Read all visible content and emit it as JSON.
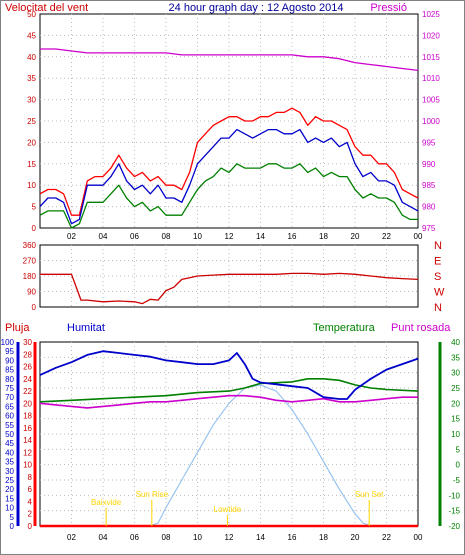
{
  "header": {
    "left": "Velocitat del vent",
    "center": "24 hour graph day : 12 Agosto 2014",
    "right": "Pressió"
  },
  "colors": {
    "wind_gust": "#ff0000",
    "wind_avg": "#0000cc",
    "wind_min": "#008000",
    "pressure": "#cc00cc",
    "direction": "#cc0000",
    "humidity": "#0000cc",
    "temperature": "#008000",
    "dew_point": "#cc00cc",
    "solar": "#99c4f0",
    "rain": "#ff0000",
    "events": "#ffd400",
    "left_axis": "#cc0000",
    "hum_axis": "#0000cc",
    "right_axis": "#cc00cc",
    "temp_axis": "#008000"
  },
  "x_ticks": [
    "02",
    "04",
    "06",
    "08",
    "10",
    "12",
    "14",
    "16",
    "18",
    "20",
    "22",
    "00"
  ],
  "chart_data": [
    {
      "type": "line",
      "title": "24 hour graph day : 12 Agosto 2014",
      "xlabel": "",
      "xlim": [
        0,
        24
      ],
      "y_left": {
        "label": "Velocitat del vent",
        "ylim": [
          0,
          50
        ],
        "ticks": [
          "0",
          "5",
          "10",
          "15",
          "20",
          "25",
          "30",
          "35",
          "40",
          "45",
          "50"
        ]
      },
      "y_right": {
        "label": "Pressió",
        "ylim": [
          970,
          1025
        ],
        "ticks": [
          "975",
          "980",
          "985",
          "990",
          "995",
          "1000",
          "1005",
          "1010",
          "1015",
          "1020",
          "1025"
        ]
      },
      "series": [
        {
          "name": "Velocitat del vent",
          "axis": "left",
          "x": [
            0,
            0.5,
            1,
            1.5,
            2,
            2.5,
            3,
            3.5,
            4,
            4.5,
            5,
            5.5,
            6,
            6.5,
            7,
            7.5,
            8,
            8.5,
            9,
            9.5,
            10,
            10.5,
            11,
            11.5,
            12,
            12.5,
            13,
            13.5,
            14,
            14.5,
            15,
            15.5,
            16,
            16.5,
            17,
            17.5,
            18,
            18.5,
            19,
            19.5,
            20,
            20.5,
            21,
            21.5,
            22,
            22.5,
            23,
            23.5,
            24
          ],
          "y": [
            5,
            7,
            7,
            6,
            1,
            2,
            10,
            10,
            10,
            12,
            15,
            11,
            9,
            10,
            8,
            10,
            7,
            7,
            6,
            10,
            15,
            17,
            19,
            21,
            21,
            23,
            22,
            21,
            22,
            23,
            23,
            22,
            22,
            23,
            20,
            21,
            20,
            21,
            19,
            20,
            15,
            12,
            13,
            11,
            11,
            10,
            6,
            5,
            4
          ]
        },
        {
          "name": "",
          "axis": "left",
          "x": [
            0,
            0.5,
            1,
            1.5,
            2,
            2.5,
            3,
            3.5,
            4,
            4.5,
            5,
            5.5,
            6,
            6.5,
            7,
            7.5,
            8,
            8.5,
            9,
            9.5,
            10,
            10.5,
            11,
            11.5,
            12,
            12.5,
            13,
            13.5,
            14,
            14.5,
            15,
            15.5,
            16,
            16.5,
            17,
            17.5,
            18,
            18.5,
            19,
            19.5,
            20,
            20.5,
            21,
            21.5,
            22,
            22.5,
            23,
            23.5,
            24
          ],
          "y": [
            8,
            9,
            9,
            8,
            3,
            3,
            11,
            12,
            12,
            14,
            17,
            14,
            12,
            13,
            11,
            12,
            10,
            10,
            9,
            13,
            20,
            22,
            24,
            25,
            26,
            26,
            25,
            25,
            26,
            26,
            27,
            27,
            28,
            27,
            24,
            26,
            25,
            25,
            24,
            23,
            19,
            17,
            17,
            15,
            15,
            13,
            9,
            8,
            7
          ]
        },
        {
          "name": "",
          "axis": "left",
          "x": [
            0,
            0.5,
            1,
            1.5,
            2,
            2.5,
            3,
            3.5,
            4,
            4.5,
            5,
            5.5,
            6,
            6.5,
            7,
            7.5,
            8,
            8.5,
            9,
            9.5,
            10,
            10.5,
            11,
            11.5,
            12,
            12.5,
            13,
            13.5,
            14,
            14.5,
            15,
            15.5,
            16,
            16.5,
            17,
            17.5,
            18,
            18.5,
            19,
            19.5,
            20,
            20.5,
            21,
            21.5,
            22,
            22.5,
            23,
            23.5,
            24
          ],
          "y": [
            3,
            4,
            4,
            4,
            0,
            1,
            6,
            6,
            6,
            8,
            10,
            7,
            5,
            6,
            4,
            5,
            3,
            3,
            3,
            6,
            9,
            11,
            12,
            14,
            13,
            15,
            14,
            14,
            14,
            15,
            15,
            14,
            14,
            15,
            13,
            14,
            12,
            13,
            12,
            12,
            9,
            7,
            8,
            7,
            7,
            6,
            3,
            2,
            2
          ]
        },
        {
          "name": "Pressió",
          "axis": "right",
          "x": [
            0,
            1,
            2,
            3,
            4,
            5,
            6,
            7,
            8,
            9,
            10,
            11,
            12,
            13,
            14,
            15,
            16,
            17,
            18,
            19,
            20,
            21,
            22,
            23,
            24
          ],
          "y": [
            1016,
            1016,
            1015.5,
            1015,
            1015,
            1015,
            1015,
            1015,
            1015,
            1014.5,
            1014.5,
            1014.5,
            1014.5,
            1014.5,
            1014.5,
            1014.5,
            1014.5,
            1014,
            1014,
            1013.5,
            1012.5,
            1012,
            1011.5,
            1011,
            1010.5
          ]
        }
      ]
    },
    {
      "type": "line",
      "xlim": [
        0,
        24
      ],
      "y_left": {
        "ylim": [
          0,
          360
        ],
        "ticks": [
          "0",
          "90",
          "180",
          "270",
          "360"
        ]
      },
      "y_right_labels": [
        "N",
        "W",
        "S",
        "E",
        "N"
      ],
      "series": [
        {
          "name": "",
          "axis": "left",
          "x": [
            0,
            2,
            2.6,
            3,
            4,
            5,
            6,
            6.5,
            7,
            7.5,
            8,
            8.5,
            9,
            9.5,
            10,
            11,
            12,
            13,
            14,
            15,
            16,
            17,
            18,
            19,
            20,
            21,
            22,
            23,
            24
          ],
          "y": [
            190,
            190,
            40,
            40,
            30,
            35,
            30,
            20,
            45,
            40,
            95,
            115,
            160,
            170,
            180,
            185,
            190,
            190,
            190,
            190,
            195,
            195,
            190,
            195,
            190,
            180,
            170,
            165,
            160
          ]
        }
      ]
    },
    {
      "type": "line",
      "xlim": [
        0,
        24
      ],
      "legend": [
        "Pluja",
        "Humitat",
        "Temperatura",
        "Punt rosada"
      ],
      "y_hum": {
        "label": "Humitat",
        "ylim": [
          0,
          100
        ],
        "ticks": [
          "0",
          "5",
          "10",
          "15",
          "20",
          "25",
          "30",
          "35",
          "40",
          "45",
          "50",
          "55",
          "60",
          "65",
          "70",
          "75",
          "80",
          "85",
          "90",
          "95",
          "100"
        ]
      },
      "y_rain": {
        "label": "Pluja",
        "ylim": [
          0,
          30
        ],
        "ticks": [
          "0",
          "2",
          "4",
          "6",
          "8",
          "10",
          "12",
          "14",
          "16",
          "18",
          "20",
          "22",
          "24",
          "26",
          "28",
          "30"
        ]
      },
      "y_temp": {
        "label": "Temperatura",
        "ylim": [
          -20,
          40
        ],
        "ticks": [
          "-20",
          "-15",
          "-10",
          "-5",
          "0",
          "5",
          "10",
          "15",
          "20",
          "25",
          "30",
          "35",
          "40"
        ]
      },
      "annotations": [
        "Baixvide",
        "Sun Rise",
        "Lowtide",
        "Sun Set"
      ],
      "series": [
        {
          "name": "Humitat",
          "axis": "hum",
          "x": [
            0,
            1,
            2,
            3,
            4,
            5,
            6,
            7,
            8,
            9,
            10,
            11,
            12,
            12.5,
            13,
            13.5,
            14,
            15,
            16,
            17,
            18,
            19,
            19.5,
            20,
            21,
            22,
            23,
            24
          ],
          "y": [
            82,
            86,
            89,
            93,
            95,
            94,
            93,
            92,
            90,
            89,
            88,
            88,
            90,
            94,
            88,
            80,
            78,
            77,
            76,
            75,
            70,
            69,
            69,
            74,
            80,
            85,
            88,
            91
          ]
        },
        {
          "name": "Temperatura",
          "axis": "temp",
          "x": [
            0,
            2,
            4,
            6,
            8,
            10,
            12,
            13,
            14,
            16,
            17,
            18,
            19,
            20,
            21,
            22,
            24
          ],
          "y": [
            20.5,
            21,
            21.5,
            22,
            22.5,
            23.5,
            24,
            25,
            26.5,
            27,
            28,
            28,
            27.5,
            26,
            25,
            24.5,
            24
          ]
        },
        {
          "name": "Punt rosada",
          "axis": "temp",
          "x": [
            0,
            1,
            2,
            3,
            4,
            5,
            6,
            7,
            8,
            9,
            10,
            11,
            12,
            13,
            14,
            15,
            16,
            17,
            18,
            19,
            20,
            21,
            22,
            23,
            24
          ],
          "y": [
            20,
            19.5,
            19,
            18.5,
            19,
            19.5,
            20,
            20.5,
            20.5,
            21,
            21.5,
            22,
            22.5,
            22.5,
            22,
            21,
            20.5,
            21,
            21.5,
            20.5,
            20.5,
            21,
            21.5,
            22,
            22
          ]
        },
        {
          "name": "",
          "axis": "temp",
          "x": [
            0,
            7,
            7.5,
            8,
            9,
            10,
            11,
            12,
            13,
            14,
            15,
            16,
            17,
            18,
            19,
            20,
            20.5,
            21,
            24
          ],
          "y": [
            -20,
            -20,
            -19,
            -14,
            -5,
            4,
            13,
            20,
            25,
            26,
            24,
            18,
            10,
            1,
            -8,
            -16,
            -19,
            -20,
            -20
          ]
        },
        {
          "name": "Pluja",
          "axis": "rain",
          "x": [
            0,
            24
          ],
          "y": [
            0,
            0
          ]
        }
      ]
    }
  ]
}
